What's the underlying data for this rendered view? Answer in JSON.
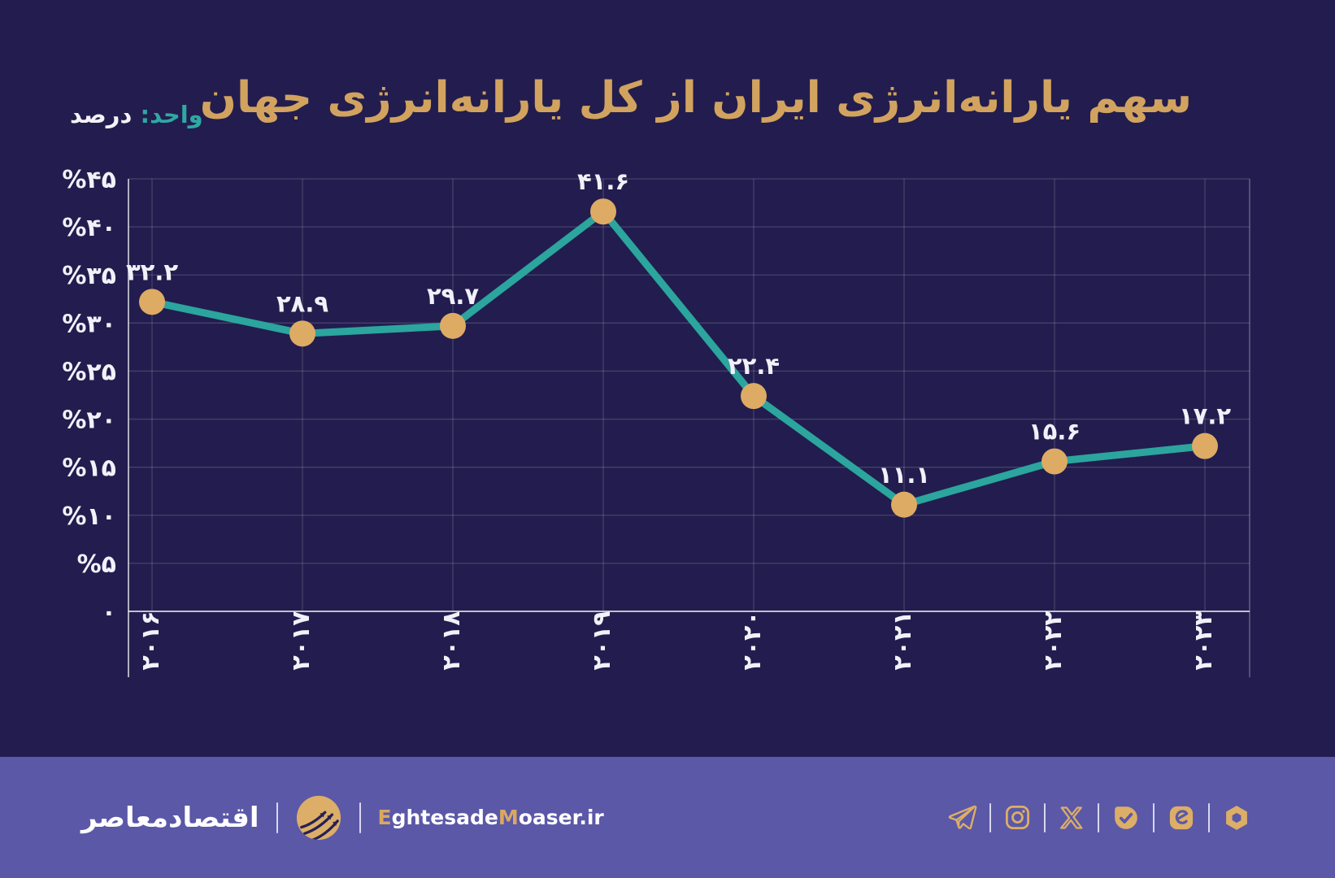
{
  "title": "سهم یارانه‌انرژی ایران از کل یارانه‌انرژی جهان",
  "unit": {
    "label": "واحد:",
    "value": "درصد"
  },
  "chart_data": {
    "type": "line",
    "title": "سهم یارانه‌انرژی ایران از کل یارانه‌انرژی جهان",
    "xlabel": "",
    "ylabel": "درصد",
    "categories": [
      2016,
      2017,
      2018,
      2019,
      2020,
      2021,
      2022,
      2023
    ],
    "values": [
      32.2,
      28.9,
      29.7,
      41.6,
      22.4,
      11.1,
      15.6,
      17.2
    ],
    "point_labels_fa": [
      "۳۲.۲",
      "۲۸.۹",
      "۲۹.۷",
      "۴۱.۶",
      "۲۲.۴",
      "۱۱.۱",
      "۱۵.۶",
      "۱۷.۲"
    ],
    "x_tick_labels_fa": [
      "۲۰۱۶",
      "۲۰۱۷",
      "۲۰۱۸",
      "۲۰۱۹",
      "۲۰۲۰",
      "۲۰۲۱",
      "۲۰۲۲",
      "۲۰۲۳"
    ],
    "y_tick_labels_fa": [
      "۰",
      "%۵",
      "%۱۰",
      "%۱۵",
      "%۲۰",
      "%۲۵",
      "%۳۰",
      "%۳۵",
      "%۴۰",
      "%۴۵"
    ],
    "ylim": [
      0,
      45
    ],
    "y_tick_step": 5,
    "grid": true,
    "legend": false,
    "line_color": "#2ba59e",
    "marker_color": "#ddab64"
  },
  "footer": {
    "brand_fa": "اقتصادمعاصر",
    "website_parts": [
      "E",
      "ghtesade",
      "M",
      "oaser",
      ".ir"
    ],
    "social_icons": [
      "telegram",
      "instagram",
      "x-twitter",
      "bale",
      "eitaa",
      "rubika"
    ]
  },
  "colors": {
    "background": "#221d4e",
    "footer_bar": "#5b58a8",
    "title_gold": "#d2a35f",
    "marker_gold": "#ddab64",
    "icon_gold": "#dcae67",
    "line_teal": "#2ba59e",
    "unit_teal": "#2fa8a3",
    "text_white": "#f4f2f8"
  }
}
